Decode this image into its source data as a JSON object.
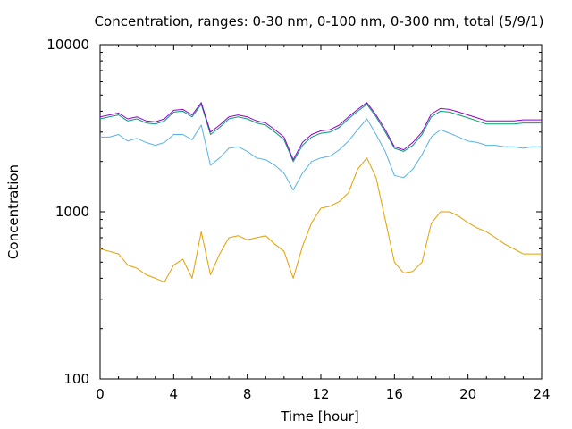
{
  "chart_data": {
    "type": "line",
    "title": "Concentration, ranges: 0-30 nm, 0-100 nm, 0-300 nm, total (5/9/1)",
    "xlabel": "Time [hour]",
    "ylabel": "Concentration",
    "xlim": [
      0,
      24
    ],
    "ylim": [
      100,
      10000
    ],
    "yscale": "log",
    "grid": false,
    "x_ticks": [
      0,
      4,
      8,
      12,
      16,
      20,
      24
    ],
    "x_tick_labels": [
      "0",
      "4",
      "8",
      "12",
      "16",
      "20",
      "24"
    ],
    "y_ticks": [
      100,
      1000,
      10000
    ],
    "y_tick_labels": [
      "100",
      "1000",
      "10000"
    ],
    "x": [
      0,
      0.5,
      1,
      1.5,
      2,
      2.5,
      3,
      3.5,
      4,
      4.5,
      5,
      5.5,
      6,
      6.5,
      7,
      7.5,
      8,
      8.5,
      9,
      9.5,
      10,
      10.5,
      11,
      11.5,
      12,
      12.5,
      13,
      13.5,
      14,
      14.5,
      15,
      15.5,
      16,
      16.5,
      17,
      17.5,
      18,
      18.5,
      19,
      19.5,
      20,
      20.5,
      21,
      21.5,
      22,
      22.5,
      23,
      23.5,
      24
    ],
    "series": [
      {
        "color": "#e69f00",
        "values": [
          600,
          580,
          560,
          480,
          460,
          420,
          400,
          380,
          480,
          520,
          400,
          760,
          420,
          560,
          700,
          720,
          680,
          700,
          720,
          640,
          580,
          400,
          620,
          860,
          1050,
          1080,
          1150,
          1300,
          1800,
          2100,
          1600,
          900,
          500,
          430,
          440,
          500,
          850,
          1000,
          1000,
          940,
          860,
          800,
          760,
          700,
          640,
          600,
          560,
          560,
          560
        ]
      },
      {
        "color": "#56b4e9",
        "values": [
          2800,
          2800,
          2900,
          2650,
          2750,
          2600,
          2500,
          2600,
          2900,
          2900,
          2700,
          3300,
          1900,
          2100,
          2400,
          2450,
          2300,
          2100,
          2050,
          1900,
          1700,
          1350,
          1700,
          2000,
          2100,
          2150,
          2350,
          2650,
          3100,
          3600,
          2900,
          2300,
          1650,
          1600,
          1800,
          2200,
          2800,
          3100,
          2950,
          2800,
          2650,
          2600,
          2500,
          2500,
          2450,
          2450,
          2400,
          2450,
          2450
        ]
      },
      {
        "color": "#009e73",
        "values": [
          3600,
          3700,
          3800,
          3500,
          3600,
          3400,
          3350,
          3500,
          3950,
          4000,
          3700,
          4400,
          2900,
          3200,
          3600,
          3700,
          3600,
          3400,
          3300,
          3000,
          2700,
          2000,
          2500,
          2800,
          2950,
          3000,
          3200,
          3600,
          4000,
          4400,
          3700,
          3000,
          2400,
          2300,
          2500,
          2900,
          3700,
          4000,
          3950,
          3800,
          3650,
          3500,
          3350,
          3350,
          3350,
          3350,
          3400,
          3400,
          3400
        ]
      },
      {
        "color": "#9400d3",
        "values": [
          3700,
          3800,
          3900,
          3600,
          3700,
          3500,
          3450,
          3600,
          4050,
          4100,
          3800,
          4500,
          3000,
          3300,
          3700,
          3800,
          3700,
          3500,
          3400,
          3100,
          2800,
          2050,
          2600,
          2900,
          3050,
          3100,
          3300,
          3700,
          4100,
          4500,
          3800,
          3100,
          2450,
          2350,
          2600,
          3000,
          3850,
          4150,
          4100,
          3950,
          3800,
          3650,
          3500,
          3500,
          3500,
          3500,
          3550,
          3550,
          3550
        ]
      }
    ]
  }
}
